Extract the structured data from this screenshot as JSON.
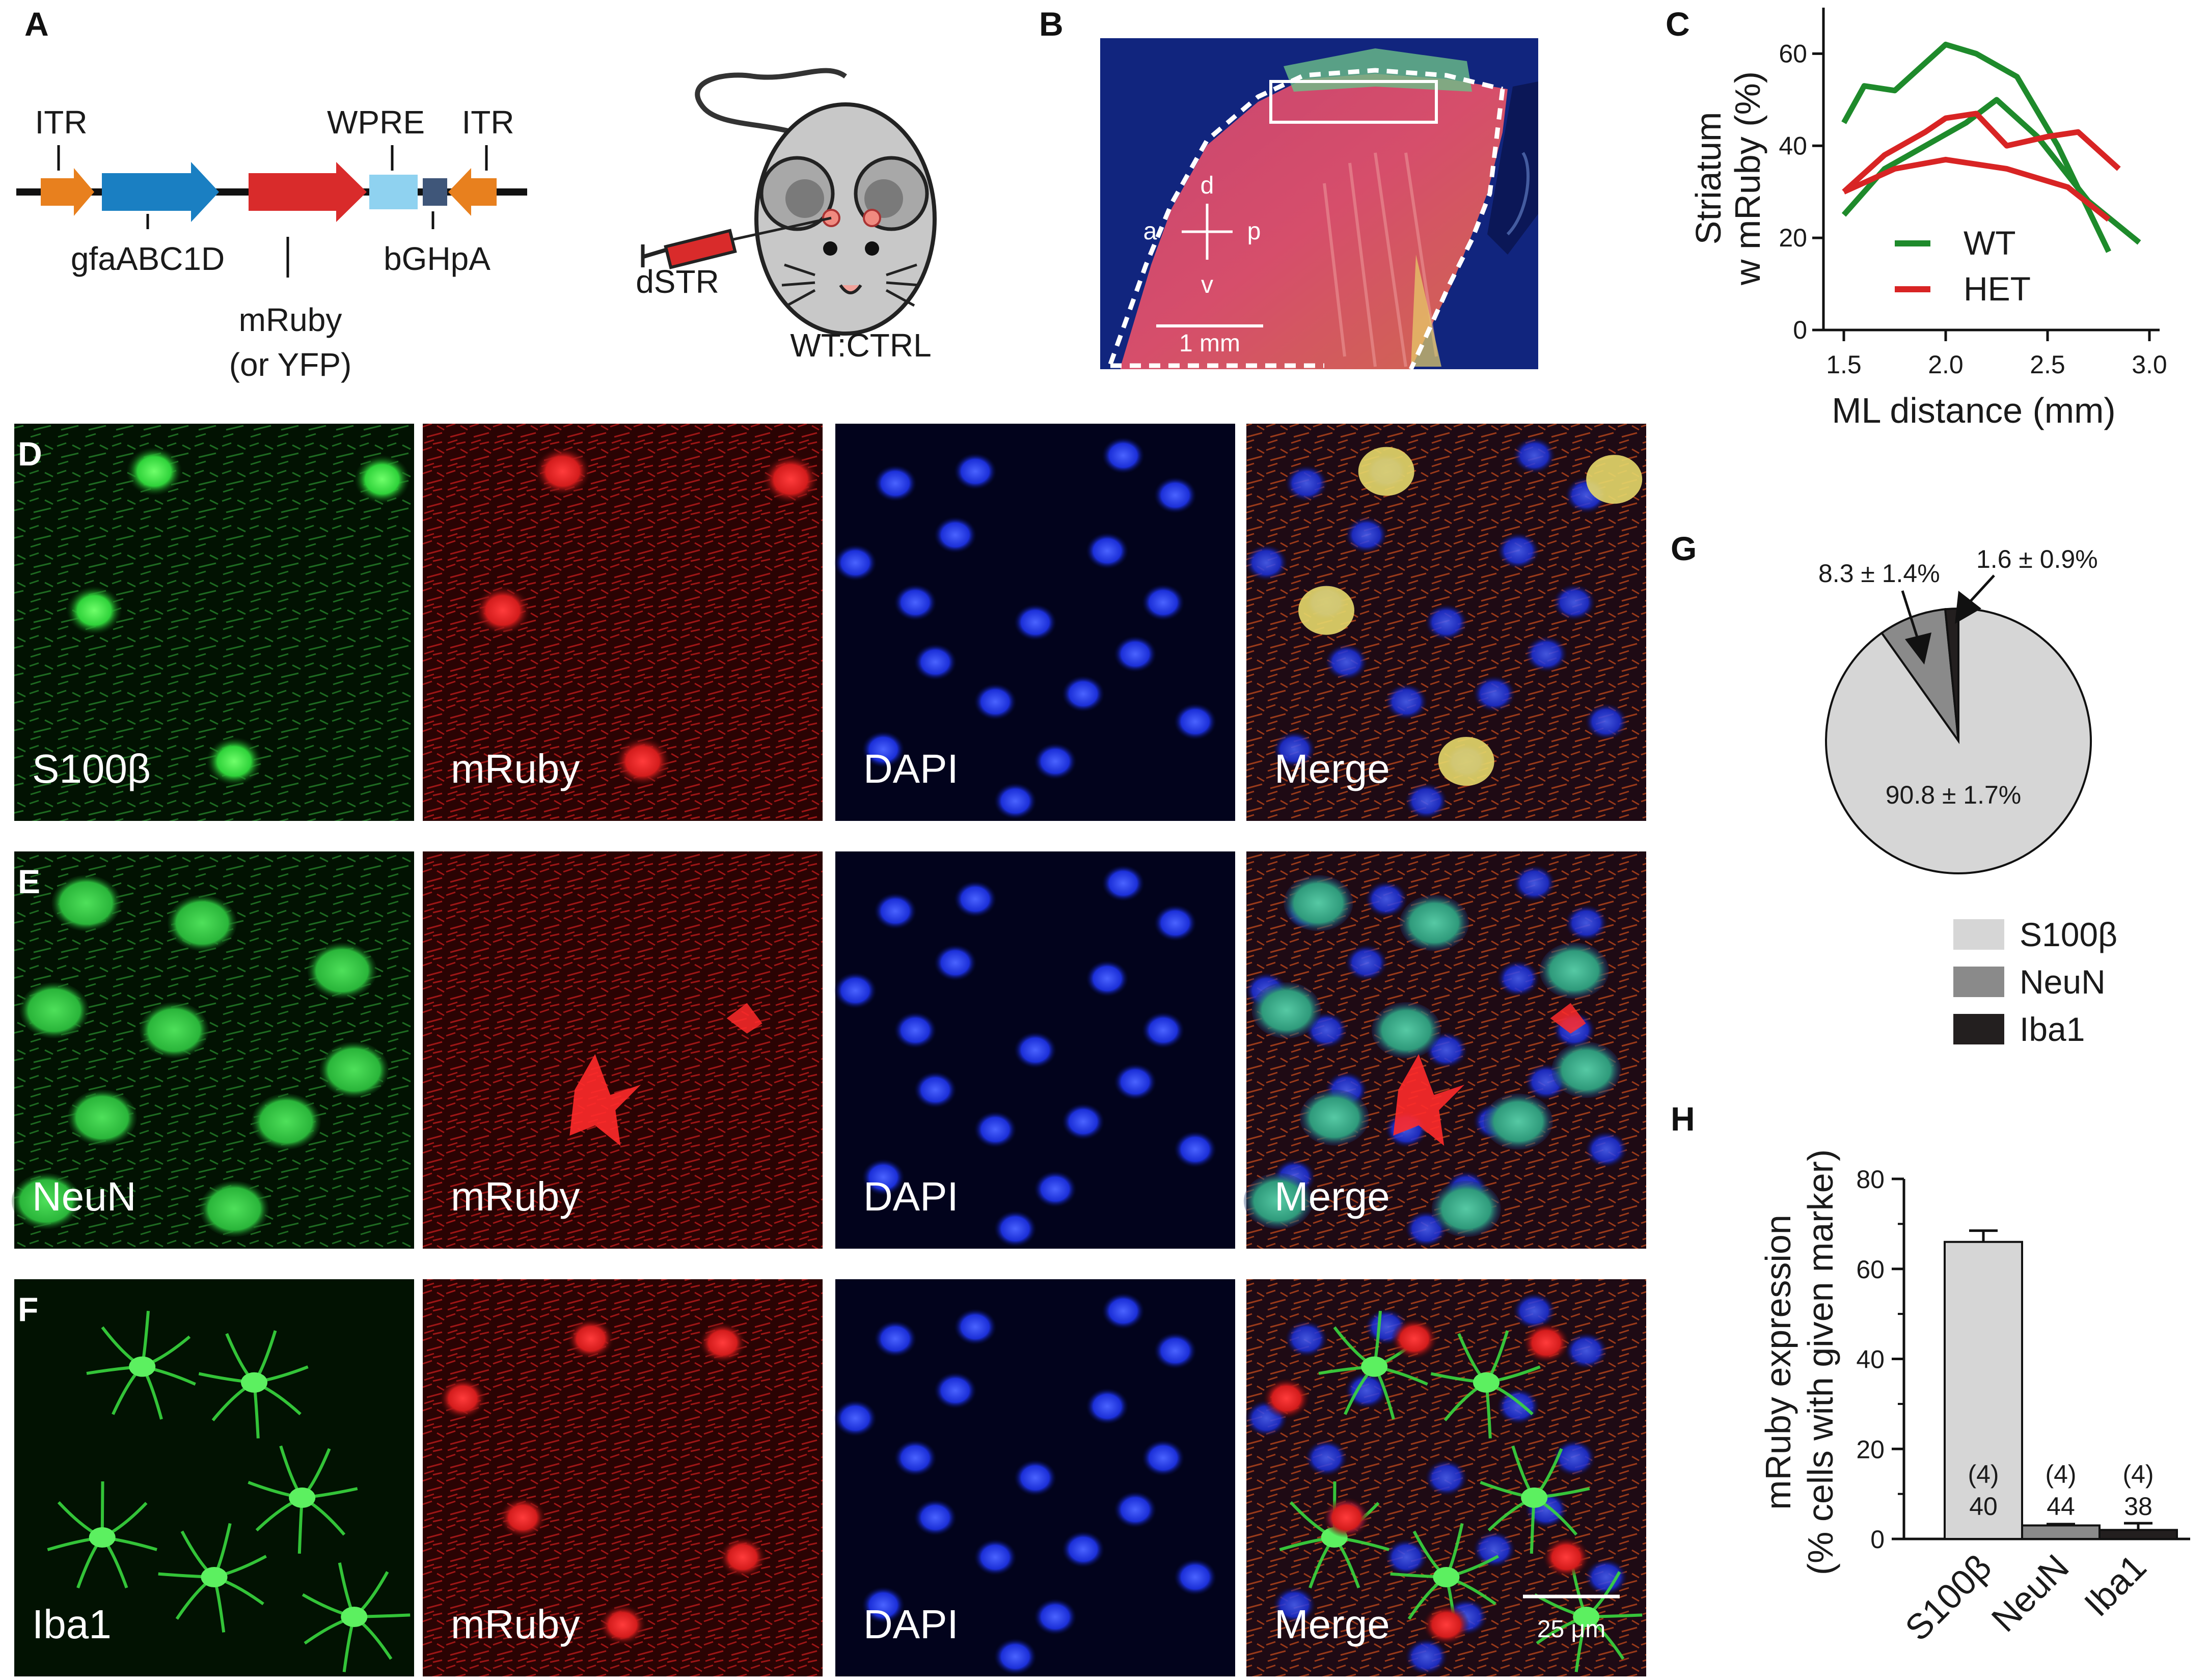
{
  "panels": {
    "A": "A",
    "B": "B",
    "C": "C",
    "D": "D",
    "E": "E",
    "F": "F",
    "G": "G",
    "H": "H"
  },
  "construct": {
    "itr_left": "ITR",
    "gfa": "gfaABC1D",
    "mruby": "mRuby",
    "or_yfp": "(or YFP)",
    "wpre": "WPRE",
    "itr_right": "ITR",
    "bghpa": "bGHpA",
    "colors": {
      "itr": "#e8801e",
      "gfa": "#1a7fc2",
      "mruby": "#d92b2b",
      "wpre": "#8fd2f0",
      "bghpa": "#3f5679"
    }
  },
  "mouse": {
    "injection_site": "dSTR",
    "condition": "WT:CTRL"
  },
  "section_image": {
    "orient_d": "d",
    "orient_v": "v",
    "orient_a": "a",
    "orient_p": "p",
    "scale_bar": "1 mm"
  },
  "chart_c": {
    "type": "line",
    "ylabel_line1": "Striatum",
    "ylabel_line2": "w mRuby (%)",
    "xlabel": "ML distance (mm)",
    "xlim": [
      1.4,
      3.05
    ],
    "ylim": [
      0,
      70
    ],
    "xticks": [
      1.5,
      2.0,
      2.5,
      3.0
    ],
    "xtick_labels": [
      "1.5",
      "2.0",
      "2.5",
      "3.0"
    ],
    "yticks": [
      0,
      20,
      40,
      60
    ],
    "ytick_labels": [
      "0",
      "20",
      "40",
      "60"
    ],
    "legend": [
      {
        "name": "WT",
        "color": "#1e8a2b"
      },
      {
        "name": "HET",
        "color": "#d82424"
      }
    ],
    "series": [
      {
        "name": "WT",
        "color": "#1e8a2b",
        "x": [
          1.5,
          1.6,
          1.75,
          2.0,
          2.15,
          2.35,
          2.55,
          2.8
        ],
        "y": [
          45,
          53,
          52,
          62,
          60,
          55,
          40,
          17
        ]
      },
      {
        "name": "WT",
        "color": "#1e8a2b",
        "x": [
          1.5,
          1.7,
          1.9,
          2.1,
          2.25,
          2.45,
          2.7,
          2.95
        ],
        "y": [
          25,
          35,
          40,
          45,
          50,
          42,
          28,
          19
        ]
      },
      {
        "name": "HET",
        "color": "#d82424",
        "x": [
          1.5,
          1.7,
          1.9,
          2.0,
          2.15,
          2.3,
          2.5,
          2.65,
          2.85
        ],
        "y": [
          30,
          38,
          43,
          46,
          47,
          40,
          42,
          43,
          35
        ]
      },
      {
        "name": "HET",
        "color": "#d82424",
        "x": [
          1.5,
          1.75,
          2.0,
          2.3,
          2.6,
          2.8
        ],
        "y": [
          30,
          35,
          37,
          35,
          31,
          24
        ]
      }
    ]
  },
  "micrographs": {
    "rows": [
      {
        "panel": "D",
        "labels": [
          "S100β",
          "mRuby",
          "DAPI",
          "Merge"
        ]
      },
      {
        "panel": "E",
        "labels": [
          "NeuN",
          "mRuby",
          "DAPI",
          "Merge"
        ]
      },
      {
        "panel": "F",
        "labels": [
          "Iba1",
          "mRuby",
          "DAPI",
          "Merge"
        ]
      }
    ],
    "scale_bar": "25 μm"
  },
  "chart_g": {
    "type": "pie",
    "slices": [
      {
        "name": "S100β",
        "value": 90.8,
        "label": "90.8 ± 1.7%",
        "color": "#d6d6d6"
      },
      {
        "name": "NeuN",
        "value": 8.3,
        "label": "8.3 ± 1.4%",
        "color": "#8a8a8a"
      },
      {
        "name": "Iba1",
        "value": 1.6,
        "label": "1.6 ± 0.9%",
        "color": "#231f1f"
      }
    ],
    "legend": [
      "S100β",
      "NeuN",
      "Iba1"
    ]
  },
  "chart_h": {
    "type": "bar",
    "ylabel_line1": "mRuby expression",
    "ylabel_line2": "(% cells with given marker)",
    "categories": [
      "S100β",
      "NeuN",
      "Iba1"
    ],
    "values": [
      66,
      3,
      2
    ],
    "errors": [
      2.5,
      0.3,
      1.5
    ],
    "colors": [
      "#d6d6d6",
      "#8a8a8a",
      "#231f1f"
    ],
    "n_animals": [
      "(4)",
      "(4)",
      "(4)"
    ],
    "n_cells": [
      "40",
      "44",
      "38"
    ],
    "ylim": [
      0,
      80
    ],
    "yticks": [
      0,
      20,
      40,
      60,
      80
    ],
    "ytick_labels": [
      "0",
      "20",
      "40",
      "60",
      "80"
    ]
  }
}
